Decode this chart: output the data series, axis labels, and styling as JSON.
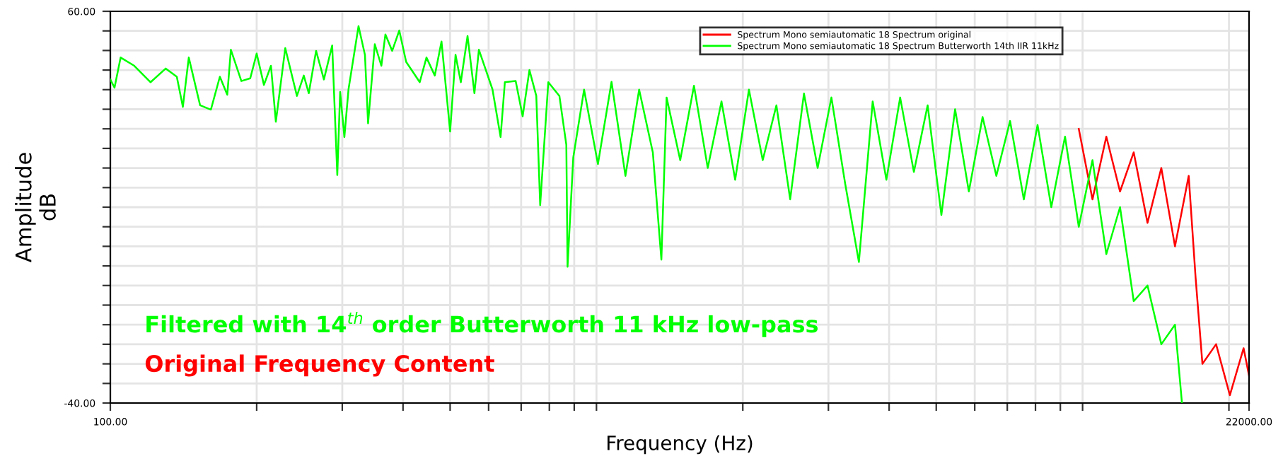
{
  "chart_data": {
    "type": "line",
    "xlabel": "Frequency (Hz)",
    "ylabel": "Amplitude\ndB",
    "log": "x",
    "xlim": [
      100,
      22000
    ],
    "xticks": [
      {
        "value": 100,
        "label": "100.00"
      },
      {
        "value": 200,
        "label": null
      },
      {
        "value": 300,
        "label": null
      },
      {
        "value": 400,
        "label": null
      },
      {
        "value": 500,
        "label": null
      },
      {
        "value": 600,
        "label": null
      },
      {
        "value": 700,
        "label": null
      },
      {
        "value": 800,
        "label": null
      },
      {
        "value": 900,
        "label": null
      },
      {
        "value": 1000,
        "label": null
      },
      {
        "value": 2000,
        "label": null
      },
      {
        "value": 3000,
        "label": null
      },
      {
        "value": 4000,
        "label": null
      },
      {
        "value": 5000,
        "label": null
      },
      {
        "value": 6000,
        "label": null
      },
      {
        "value": 7000,
        "label": null
      },
      {
        "value": 8000,
        "label": null
      },
      {
        "value": 9000,
        "label": null
      },
      {
        "value": 10000,
        "label": null
      },
      {
        "value": 20000,
        "label": null
      },
      {
        "value": 22000,
        "label": "22000.00"
      }
    ],
    "ylim": [
      -40,
      60
    ],
    "yticks": [
      {
        "value": -40,
        "label": "-40.00"
      },
      {
        "value": -35,
        "label": null
      },
      {
        "value": -30,
        "label": null
      },
      {
        "value": -25,
        "label": null
      },
      {
        "value": -20,
        "label": null
      },
      {
        "value": -15,
        "label": null
      },
      {
        "value": -10,
        "label": null
      },
      {
        "value": -5,
        "label": null
      },
      {
        "value": 0,
        "label": null
      },
      {
        "value": 5,
        "label": null
      },
      {
        "value": 10,
        "label": null
      },
      {
        "value": 15,
        "label": null
      },
      {
        "value": 20,
        "label": null
      },
      {
        "value": 25,
        "label": null
      },
      {
        "value": 30,
        "label": null
      },
      {
        "value": 35,
        "label": null
      },
      {
        "value": 40,
        "label": null
      },
      {
        "value": 45,
        "label": null
      },
      {
        "value": 50,
        "label": null
      },
      {
        "value": 55,
        "label": null
      },
      {
        "value": 60,
        "label": "60.00"
      }
    ],
    "grid": true,
    "legend": "top right",
    "series": [
      {
        "name": "Spectrum Mono semiautomatic 18 Spectrum original",
        "color": "#ff0000",
        "x": [
          9821,
          10480,
          11190,
          11940,
          12740,
          13600,
          14520,
          15490,
          16530,
          17080,
          17640,
          18820,
          20090,
          21440,
          22000
        ],
        "values": [
          30,
          12,
          28,
          14,
          24,
          6,
          20,
          0,
          18,
          -8,
          -30,
          -25,
          -38,
          -26,
          -33
        ]
      },
      {
        "name": "Spectrum Mono semiautomatic 18 Spectrum Butterworth 14th IIR 11kHz",
        "color": "#00ff00",
        "x": [
          100,
          102,
          105,
          112,
          121,
          130,
          137,
          141,
          145,
          153,
          161,
          168,
          174,
          177,
          186,
          194,
          200,
          207,
          214,
          219,
          229,
          242,
          250,
          256,
          265,
          275,
          286,
          293,
          297,
          303,
          309,
          324,
          334,
          339,
          350,
          361,
          368,
          380,
          393,
          406,
          433,
          447,
          465,
          480,
          500,
          513,
          526,
          543,
          561,
          573,
          611,
          635,
          648,
          682,
          705,
          728,
          752,
          766,
          796,
          839,
          867,
          872,
          896,
          943,
          1007,
          1074,
          1147,
          1224,
          1306,
          1360,
          1394,
          1487,
          1587,
          1694,
          1808,
          1929,
          2059,
          2198,
          2345,
          2503,
          2672,
          2851,
          3043,
          3248,
          3466,
          3700,
          3948,
          4214,
          4497,
          4800,
          5123,
          5467,
          5835,
          6227,
          6646,
          7093,
          7570,
          8079,
          8622,
          9202,
          9821,
          10480,
          11190,
          11940,
          12740,
          13600,
          14520,
          15490,
          16010
        ],
        "values": [
          42.6,
          40.5,
          48.2,
          46.1,
          41.9,
          45.4,
          43.3,
          35.6,
          48.2,
          36.0,
          34.9,
          43.3,
          38.7,
          50.2,
          42.2,
          42.9,
          49.2,
          41.2,
          46.1,
          31.8,
          50.6,
          38.4,
          43.6,
          39.1,
          49.9,
          42.6,
          51.3,
          18.2,
          39.4,
          27.9,
          40.1,
          56.2,
          48.9,
          31.4,
          51.6,
          46.1,
          54.1,
          49.9,
          55.1,
          47.1,
          41.9,
          48.2,
          43.6,
          52.3,
          29.3,
          48.9,
          41.9,
          53.7,
          39.1,
          50.2,
          40.1,
          27.9,
          41.9,
          42.2,
          33.2,
          45.0,
          38.4,
          10.5,
          41.9,
          38.4,
          25.9,
          -5.2,
          22.7,
          40,
          21,
          42,
          18,
          40,
          24,
          -3.4,
          38,
          22,
          41,
          20,
          37,
          17,
          40,
          22,
          36,
          12,
          39,
          20,
          38,
          16,
          -4,
          37,
          17,
          38,
          19,
          36,
          8,
          35,
          14,
          33,
          18,
          32,
          12,
          31,
          10,
          28,
          5,
          22,
          -2,
          10,
          -14,
          -10,
          -25,
          -20,
          -40
        ]
      }
    ],
    "annotations": [
      "Filtered with 14$^{th}$ order Butterworth 11 kHz low-pass",
      "Original Frequency Content"
    ]
  }
}
